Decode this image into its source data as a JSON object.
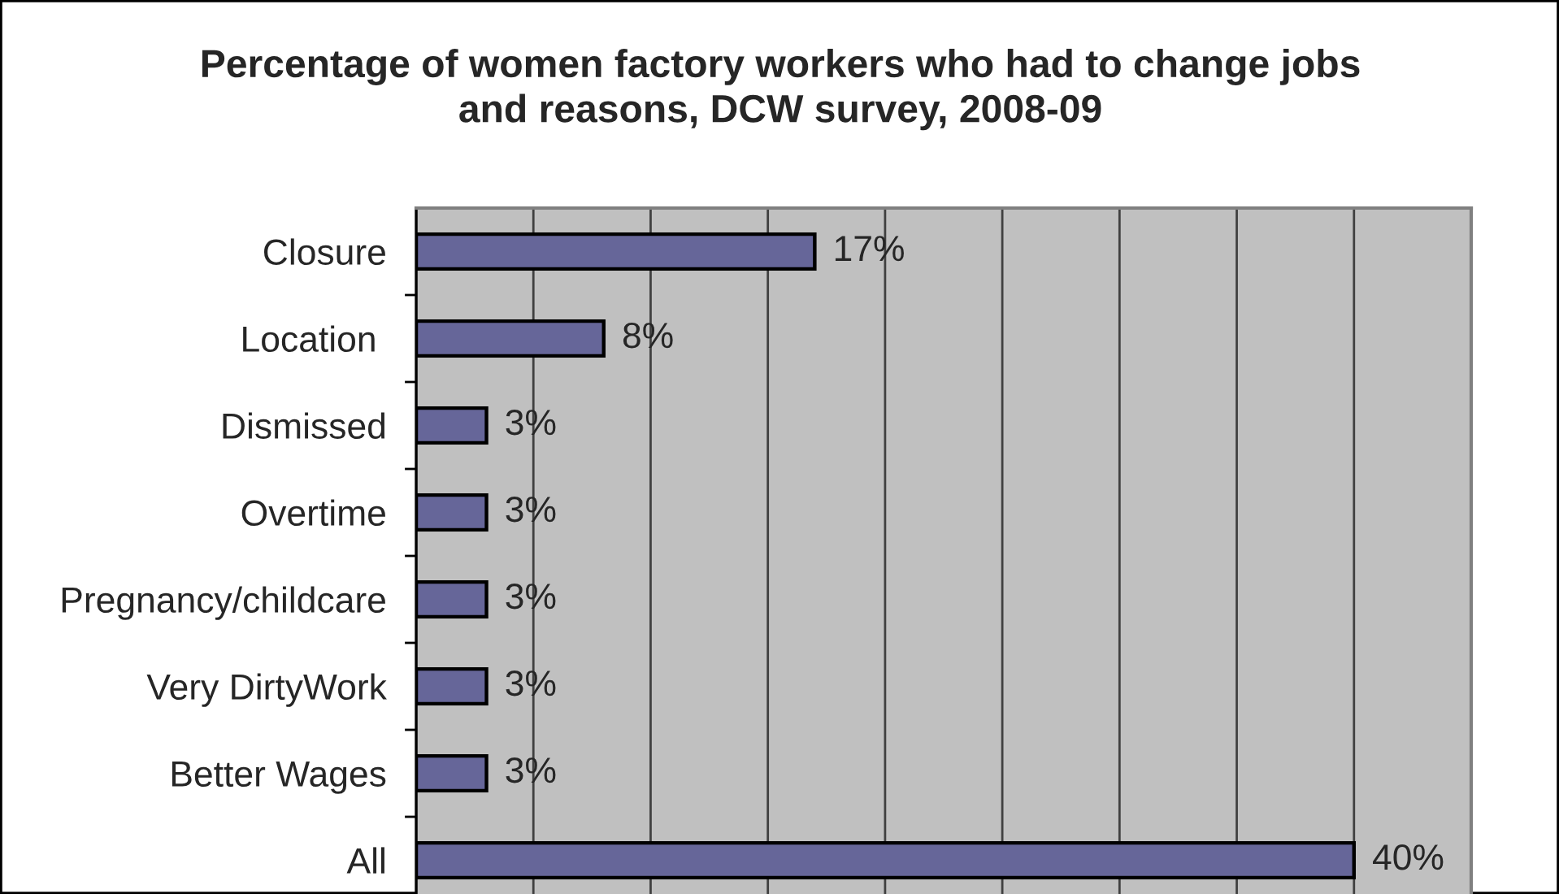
{
  "chart_data": {
    "type": "bar",
    "orientation": "horizontal",
    "title": "Percentage of women factory workers who had to change jobs\nand reasons, DCW survey, 2008-09",
    "categories": [
      "Closure",
      "Location ",
      "Dismissed",
      "Overtime",
      "Pregnancy/childcare",
      "Very DirtyWork",
      "Better Wages",
      "All"
    ],
    "values": [
      17,
      8,
      3,
      3,
      3,
      3,
      3,
      40
    ],
    "value_labels": [
      "17%",
      "8%",
      "3%",
      "3%",
      "3%",
      "3%",
      "3%",
      "40%"
    ],
    "color": "#666699",
    "xlim": [
      0,
      45
    ],
    "xticks": [
      {
        "value": 0,
        "label": null
      },
      {
        "value": 5,
        "label": null
      },
      {
        "value": 10,
        "label": null
      },
      {
        "value": 15,
        "label": null
      },
      {
        "value": 20,
        "label": null
      },
      {
        "value": 25,
        "label": null
      },
      {
        "value": 30,
        "label": null
      },
      {
        "value": 35,
        "label": null
      },
      {
        "value": 40,
        "label": null
      },
      {
        "value": 45,
        "label": null
      }
    ],
    "tick_labels": "y",
    "grid": "x",
    "legend": false
  }
}
